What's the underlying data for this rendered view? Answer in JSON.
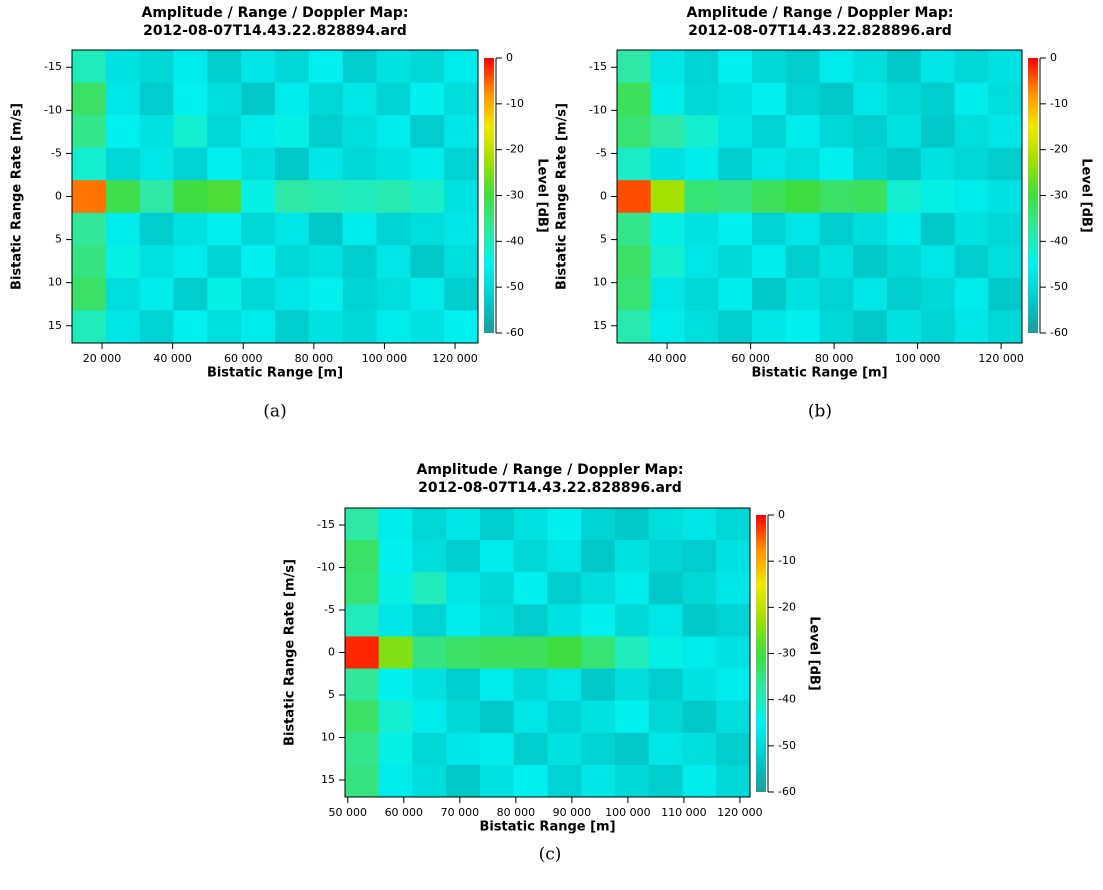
{
  "chart_data": [
    {
      "type": "heatmap",
      "title": [
        "Amplitude / Range / Doppler Map:",
        "2012-08-07T14.43.22.828894.ard"
      ],
      "xlabel": "Bistatic Range [m]",
      "ylabel": "Bistatic Range Rate [m/s]",
      "colorbar_label": "Level [dB]",
      "caption": "(a)",
      "xlim": [
        11500,
        126500
      ],
      "ylim": [
        -17,
        17
      ],
      "zlim": [
        -60,
        0
      ],
      "xticks": [
        {
          "value": 20000,
          "label": "20 000"
        },
        {
          "value": 40000,
          "label": "40 000"
        },
        {
          "value": 60000,
          "label": "60 000"
        },
        {
          "value": 80000,
          "label": "80 000"
        },
        {
          "value": 100000,
          "label": "100 000"
        },
        {
          "value": 120000,
          "label": "120 000"
        }
      ],
      "yticks": [
        -15,
        -10,
        -5,
        0,
        5,
        10,
        15
      ],
      "cticks": [
        0,
        -10,
        -20,
        -30,
        -40,
        -50,
        -60
      ],
      "colormap": [
        "#1f9a9a",
        "#00cccc",
        "#00f0f0",
        "#30e8a0",
        "#40dd40",
        "#a0e000",
        "#f0e800",
        "#ff9000",
        "#ff0000"
      ],
      "values": [
        [
          -40,
          -48,
          -50,
          -46,
          -52,
          -47,
          -50,
          -45,
          -52,
          -48,
          -50,
          -46
        ],
        [
          -33,
          -47,
          -52,
          -45,
          -49,
          -53,
          -46,
          -50,
          -47,
          -51,
          -45,
          -49
        ],
        [
          -36,
          -45,
          -48,
          -42,
          -50,
          -46,
          -44,
          -52,
          -49,
          -46,
          -52,
          -47
        ],
        [
          -42,
          -50,
          -47,
          -51,
          -45,
          -49,
          -53,
          -47,
          -50,
          -48,
          -46,
          -51
        ],
        [
          -6,
          -31,
          -38,
          -30,
          -29,
          -44,
          -38,
          -39,
          -40,
          -39,
          -41,
          -48
        ],
        [
          -37,
          -46,
          -52,
          -48,
          -45,
          -50,
          -47,
          -53,
          -46,
          -51,
          -49,
          -47
        ],
        [
          -35,
          -44,
          -48,
          -46,
          -51,
          -45,
          -50,
          -48,
          -52,
          -47,
          -53,
          -49
        ],
        [
          -33,
          -49,
          -46,
          -52,
          -44,
          -50,
          -47,
          -45,
          -51,
          -49,
          -46,
          -52
        ],
        [
          -40,
          -47,
          -51,
          -45,
          -49,
          -46,
          -52,
          -48,
          -50,
          -46,
          -48,
          -45
        ]
      ]
    },
    {
      "type": "heatmap",
      "title": [
        "Amplitude / Range / Doppler Map:",
        "2012-08-07T14.43.22.828896.ard"
      ],
      "xlabel": "Bistatic Range [m]",
      "ylabel": "Bistatic Range Rate [m/s]",
      "colorbar_label": "Level [dB]",
      "caption": "(b)",
      "xlim": [
        28000,
        125000
      ],
      "ylim": [
        -17,
        17
      ],
      "zlim": [
        -60,
        0
      ],
      "xticks": [
        {
          "value": 40000,
          "label": "40 000"
        },
        {
          "value": 60000,
          "label": "60 000"
        },
        {
          "value": 80000,
          "label": "80 000"
        },
        {
          "value": 100000,
          "label": "100 000"
        },
        {
          "value": 120000,
          "label": "120 000"
        }
      ],
      "yticks": [
        -15,
        -10,
        -5,
        0,
        5,
        10,
        15
      ],
      "cticks": [
        0,
        -10,
        -20,
        -30,
        -40,
        -50,
        -60
      ],
      "colormap": [
        "#1f9a9a",
        "#00cccc",
        "#00f0f0",
        "#30e8a0",
        "#40dd40",
        "#a0e000",
        "#f0e800",
        "#ff9000",
        "#ff0000"
      ],
      "values": [
        [
          -38,
          -47,
          -51,
          -45,
          -50,
          -52,
          -46,
          -49,
          -53,
          -47,
          -50,
          -48
        ],
        [
          -32,
          -46,
          -50,
          -48,
          -45,
          -51,
          -53,
          -47,
          -50,
          -52,
          -46,
          -49
        ],
        [
          -34,
          -38,
          -42,
          -47,
          -51,
          -46,
          -50,
          -52,
          -48,
          -53,
          -49,
          -47
        ],
        [
          -41,
          -48,
          -46,
          -52,
          -47,
          -49,
          -45,
          -51,
          -53,
          -48,
          -50,
          -52
        ],
        [
          -4,
          -22,
          -34,
          -35,
          -32,
          -30,
          -33,
          -32,
          -42,
          -44,
          -46,
          -48
        ],
        [
          -36,
          -44,
          -48,
          -45,
          -51,
          -47,
          -52,
          -49,
          -46,
          -53,
          -48,
          -50
        ],
        [
          -33,
          -42,
          -47,
          -50,
          -46,
          -52,
          -48,
          -53,
          -50,
          -47,
          -52,
          -49
        ],
        [
          -34,
          -47,
          -50,
          -46,
          -53,
          -48,
          -51,
          -47,
          -52,
          -50,
          -46,
          -53
        ],
        [
          -39,
          -46,
          -49,
          -52,
          -47,
          -45,
          -50,
          -53,
          -48,
          -51,
          -47,
          -50
        ]
      ]
    },
    {
      "type": "heatmap",
      "title": [
        "Amplitude / Range / Doppler Map:",
        "2012-08-07T14.43.22.828896.ard"
      ],
      "xlabel": "Bistatic Range [m]",
      "ylabel": "Bistatic Range Rate [m/s]",
      "colorbar_label": "Level [dB]",
      "caption": "(c)",
      "xlim": [
        49500,
        121800
      ],
      "ylim": [
        -17,
        17
      ],
      "zlim": [
        -60,
        0
      ],
      "xticks": [
        {
          "value": 50000,
          "label": "50 000"
        },
        {
          "value": 60000,
          "label": "60 000"
        },
        {
          "value": 70000,
          "label": "70 000"
        },
        {
          "value": 80000,
          "label": "80 000"
        },
        {
          "value": 90000,
          "label": "90 000"
        },
        {
          "value": 100000,
          "label": "100 000"
        },
        {
          "value": 110000,
          "label": "110 000"
        },
        {
          "value": 120000,
          "label": "120 000"
        }
      ],
      "yticks": [
        -15,
        -10,
        -5,
        0,
        5,
        10,
        15
      ],
      "cticks": [
        0,
        -10,
        -20,
        -30,
        -40,
        -50,
        -60
      ],
      "colormap": [
        "#1f9a9a",
        "#00cccc",
        "#00f0f0",
        "#30e8a0",
        "#40dd40",
        "#a0e000",
        "#f0e800",
        "#ff9000",
        "#ff0000"
      ],
      "values": [
        [
          -38,
          -46,
          -50,
          -47,
          -52,
          -48,
          -45,
          -51,
          -53,
          -49,
          -47,
          -50
        ],
        [
          -33,
          -45,
          -49,
          -52,
          -46,
          -50,
          -47,
          -53,
          -48,
          -51,
          -52,
          -48
        ],
        [
          -34,
          -44,
          -40,
          -47,
          -50,
          -45,
          -52,
          -49,
          -46,
          -53,
          -50,
          -47
        ],
        [
          -40,
          -47,
          -51,
          -46,
          -49,
          -52,
          -48,
          -45,
          -50,
          -47,
          -53,
          -51
        ],
        [
          -2,
          -25,
          -35,
          -33,
          -32,
          -32,
          -30,
          -34,
          -40,
          -44,
          -46,
          -48
        ],
        [
          -37,
          -45,
          -48,
          -52,
          -46,
          -50,
          -47,
          -53,
          -49,
          -52,
          -48,
          -46
        ],
        [
          -33,
          -42,
          -46,
          -50,
          -53,
          -47,
          -51,
          -48,
          -45,
          -50,
          -53,
          -49
        ],
        [
          -36,
          -44,
          -50,
          -47,
          -46,
          -52,
          -48,
          -51,
          -53,
          -47,
          -49,
          -52
        ],
        [
          -35,
          -46,
          -49,
          -53,
          -48,
          -45,
          -51,
          -47,
          -50,
          -52,
          -46,
          -50
        ]
      ]
    }
  ]
}
